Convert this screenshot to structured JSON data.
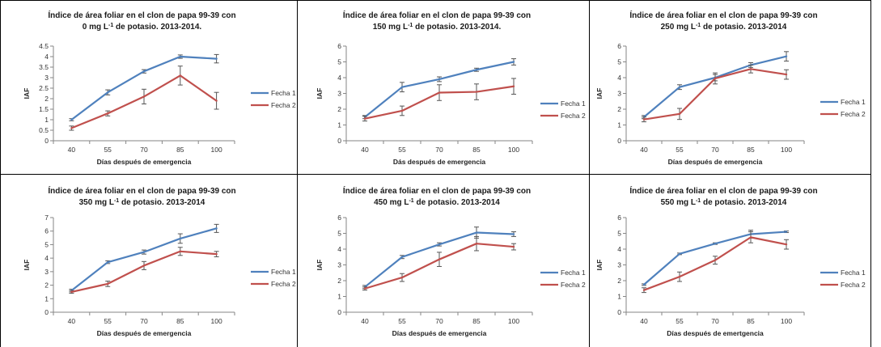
{
  "colors": {
    "fecha1": "#4F81BD",
    "fecha2": "#C0504D",
    "axis": "#868686",
    "errbar": "#555555"
  },
  "chart_data": [
    {
      "type": "line",
      "title_line1": "Índice de área foliar en el clon de papa 99-39 con",
      "title_line2_value": "0 mg L",
      "title_line2_sup": "-1",
      "title_line2_rest": " de potasio. 2013-2014.",
      "xlabel": "Días después de emergencia",
      "ylabel": "IAF",
      "ylim": [
        0,
        4.5
      ],
      "yticks": [
        "0",
        "0.5",
        "1",
        "1.5",
        "2",
        "2.5",
        "3",
        "3.5",
        "4",
        "4.5"
      ],
      "ytick_values": [
        0,
        0.5,
        1,
        1.5,
        2,
        2.5,
        3,
        3.5,
        4,
        4.5
      ],
      "categories": [
        "40",
        "55",
        "70",
        "85",
        "100"
      ],
      "series": [
        {
          "name": "Fecha 1",
          "values": [
            1.0,
            2.3,
            3.3,
            4.0,
            3.9
          ],
          "errors": [
            0.05,
            0.12,
            0.08,
            0.08,
            0.2
          ]
        },
        {
          "name": "Fecha 2",
          "values": [
            0.6,
            1.3,
            2.1,
            3.1,
            1.9
          ],
          "errors": [
            0.1,
            0.12,
            0.35,
            0.45,
            0.4
          ]
        }
      ]
    },
    {
      "type": "line",
      "title_line1": "Índice de área foliar en el clon de papa 99-39 con",
      "title_line2_value": "150 mg L",
      "title_line2_sup": "-1",
      "title_line2_rest": " de potasio. 2013-2014.",
      "xlabel": "Dás después de emergencia",
      "ylabel": "IAF",
      "ylim": [
        0,
        6
      ],
      "yticks": [
        "0",
        "1",
        "2",
        "3",
        "4",
        "5",
        "6"
      ],
      "ytick_values": [
        0,
        1,
        2,
        3,
        4,
        5,
        6
      ],
      "categories": [
        "40",
        "55",
        "70",
        "85",
        "100"
      ],
      "series": [
        {
          "name": "Fecha 1",
          "values": [
            1.5,
            3.4,
            3.9,
            4.5,
            5.0
          ],
          "errors": [
            0.1,
            0.3,
            0.15,
            0.1,
            0.2
          ]
        },
        {
          "name": "Fecha 2",
          "values": [
            1.4,
            1.9,
            3.05,
            3.1,
            3.45
          ],
          "errors": [
            0.15,
            0.3,
            0.5,
            0.5,
            0.5
          ]
        }
      ]
    },
    {
      "type": "line",
      "title_line1": "Índice de área foliar en el clon de papa 99-39 con",
      "title_line2_value": "250 mg L",
      "title_line2_sup": "-1",
      "title_line2_rest": " de potasio. 2013-2014",
      "xlabel": "Días después de emergencia",
      "ylabel": "IAF",
      "ylim": [
        0,
        6
      ],
      "yticks": [
        "0",
        "1",
        "2",
        "3",
        "4",
        "5",
        "6"
      ],
      "ytick_values": [
        0,
        1,
        2,
        3,
        4,
        5,
        6
      ],
      "categories": [
        "40",
        "55",
        "70",
        "85",
        "100"
      ],
      "series": [
        {
          "name": "Fecha 1",
          "values": [
            1.5,
            3.4,
            4.0,
            4.8,
            5.35
          ],
          "errors": [
            0.1,
            0.15,
            0.2,
            0.15,
            0.3
          ]
        },
        {
          "name": "Fecha 2",
          "values": [
            1.35,
            1.7,
            3.95,
            4.55,
            4.2
          ],
          "errors": [
            0.15,
            0.35,
            0.35,
            0.25,
            0.3
          ]
        }
      ]
    },
    {
      "type": "line",
      "title_line1": "Índice de área foliar en el clon de papa 99-39 con",
      "title_line2_value": "350 mg L",
      "title_line2_sup": "-1",
      "title_line2_rest": " de potasio. 2013-2014",
      "xlabel": "Días después de emergencia",
      "ylabel": "IAF",
      "ylim": [
        0,
        7
      ],
      "yticks": [
        "0",
        "1",
        "2",
        "3",
        "4",
        "5",
        "6",
        "7"
      ],
      "ytick_values": [
        0,
        1,
        2,
        3,
        4,
        5,
        6,
        7
      ],
      "categories": [
        "40",
        "55",
        "70",
        "85",
        "100"
      ],
      "series": [
        {
          "name": "Fecha 1",
          "values": [
            1.6,
            3.7,
            4.45,
            5.45,
            6.2
          ],
          "errors": [
            0.1,
            0.1,
            0.15,
            0.35,
            0.3
          ]
        },
        {
          "name": "Fecha 2",
          "values": [
            1.5,
            2.1,
            3.45,
            4.5,
            4.3
          ],
          "errors": [
            0.1,
            0.2,
            0.3,
            0.3,
            0.2
          ]
        }
      ]
    },
    {
      "type": "line",
      "title_line1": "Índice de área foliar en el clon de papa 99-39 con",
      "title_line2_value": "450 mg L",
      "title_line2_sup": "-1",
      "title_line2_rest": " de potasio. 2013-2014",
      "xlabel": "Días después de emergencia",
      "ylabel": "IAF",
      "ylim": [
        0,
        6
      ],
      "yticks": [
        "0",
        "1",
        "2",
        "3",
        "4",
        "5",
        "6"
      ],
      "ytick_values": [
        0,
        1,
        2,
        3,
        4,
        5,
        6
      ],
      "categories": [
        "40",
        "55",
        "70",
        "85",
        "100"
      ],
      "series": [
        {
          "name": "Fecha 1",
          "values": [
            1.6,
            3.5,
            4.3,
            5.05,
            4.95
          ],
          "errors": [
            0.1,
            0.1,
            0.1,
            0.35,
            0.15
          ]
        },
        {
          "name": "Fecha 2",
          "values": [
            1.5,
            2.2,
            3.35,
            4.35,
            4.15
          ],
          "errors": [
            0.1,
            0.25,
            0.45,
            0.45,
            0.2
          ]
        }
      ]
    },
    {
      "type": "line",
      "title_line1": "Índice de área foliar en el clon de papa 99-39 con",
      "title_line2_value": "550 mg L",
      "title_line2_sup": "-1",
      "title_line2_rest": " de potasio. 2013-2014",
      "xlabel": "Días después de emertgencia",
      "ylabel": "IAF",
      "ylim": [
        0,
        6
      ],
      "yticks": [
        "0",
        "1",
        "2",
        "3",
        "4",
        "5",
        "6"
      ],
      "ytick_values": [
        0,
        1,
        2,
        3,
        4,
        5,
        6
      ],
      "categories": [
        "40",
        "55",
        "70",
        "85",
        "100"
      ],
      "series": [
        {
          "name": "Fecha 1",
          "values": [
            1.75,
            3.7,
            4.35,
            4.95,
            5.1
          ],
          "errors": [
            0.05,
            0.05,
            0.05,
            0.25,
            0.05
          ]
        },
        {
          "name": "Fecha 2",
          "values": [
            1.4,
            2.25,
            3.3,
            4.75,
            4.3
          ],
          "errors": [
            0.15,
            0.3,
            0.25,
            0.35,
            0.3
          ]
        }
      ]
    }
  ]
}
